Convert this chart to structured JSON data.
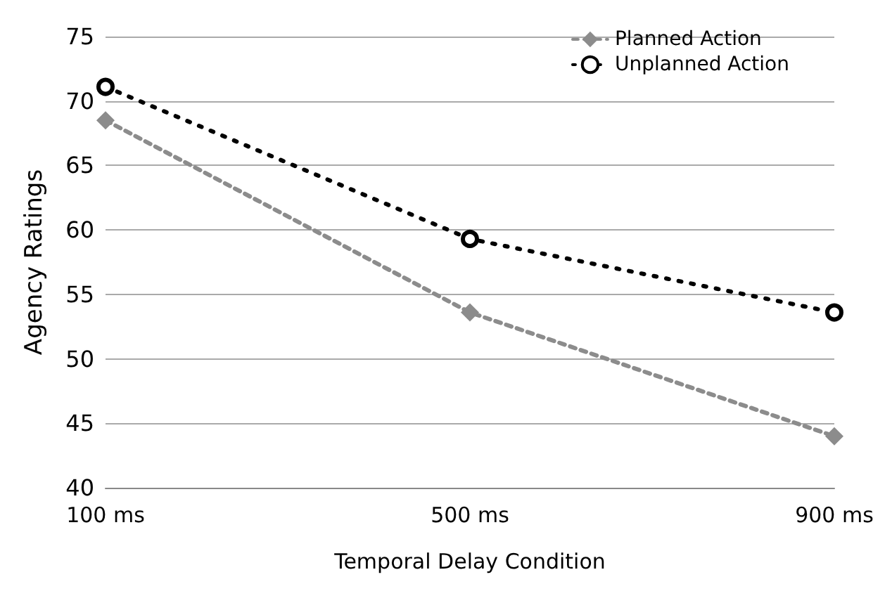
{
  "chart_data": {
    "type": "line",
    "xlabel": "Temporal Delay Condition",
    "ylabel": "Agency Ratings",
    "categories": [
      "100 ms",
      "500 ms",
      "900 ms"
    ],
    "series": [
      {
        "name": "Planned Action",
        "color": "#8c8c8c",
        "values": [
          68.5,
          53.6,
          44
        ],
        "marker": "diamond",
        "line_style": "dashed"
      },
      {
        "name": "Unplanned Action",
        "color": "#000000",
        "values": [
          71.1,
          59.3,
          53.6
        ],
        "marker": "circle",
        "line_style": "dotted"
      }
    ],
    "ylim": [
      40,
      75
    ],
    "yticks": [
      40,
      45,
      50,
      55,
      60,
      65,
      70,
      75
    ],
    "grid": "y",
    "legend": "top right"
  }
}
